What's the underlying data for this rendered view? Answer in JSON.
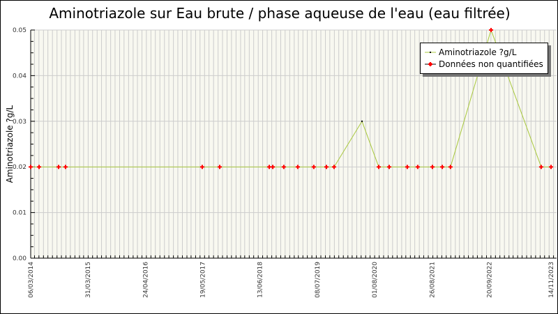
{
  "chart_data": {
    "type": "line",
    "title": "Aminotriazole sur Eau brute / phase aqueuse de l'eau (eau filtrée)",
    "xlabel": "",
    "ylabel": "Aminotriazole ?g/L",
    "xlim": [
      "2014-03-06",
      "2023-11-14"
    ],
    "ylim": [
      0,
      0.05
    ],
    "x_tick_labels": [
      "06/03/2014",
      "31/03/2015",
      "24/04/2016",
      "19/05/2017",
      "13/06/2018",
      "08/07/2019",
      "01/08/2020",
      "26/08/2021",
      "20/09/2022",
      "14/11/2023"
    ],
    "x_tick_dates": [
      "2014-03-06",
      "2015-03-31",
      "2016-04-24",
      "2017-05-19",
      "2018-06-13",
      "2019-07-08",
      "2020-08-01",
      "2021-08-26",
      "2022-09-20",
      "2023-11-14"
    ],
    "y_tick_labels": [
      "0.00",
      "0.01",
      "0.02",
      "0.03",
      "0.04",
      "0.05"
    ],
    "grid": true,
    "legend_position": "top-right",
    "colors": {
      "line": "#a8c83c",
      "quantified": "#000000",
      "non_quantified": "#ff0000",
      "plot_bg": "#f8f8f0",
      "grid": "#cccccc"
    },
    "series": [
      {
        "name": "Aminotriazole ?g/L",
        "points": [
          {
            "x": "2014-03-06",
            "y": 0.02,
            "q": false
          },
          {
            "x": "2014-05-02",
            "y": 0.02,
            "q": false
          },
          {
            "x": "2014-09-12",
            "y": 0.02,
            "q": false
          },
          {
            "x": "2014-10-29",
            "y": 0.02,
            "q": false
          },
          {
            "x": "2017-05-16",
            "y": 0.02,
            "q": false
          },
          {
            "x": "2017-09-12",
            "y": 0.02,
            "q": false
          },
          {
            "x": "2018-08-15",
            "y": 0.02,
            "q": false
          },
          {
            "x": "2018-09-08",
            "y": 0.02,
            "q": false
          },
          {
            "x": "2018-11-22",
            "y": 0.02,
            "q": false
          },
          {
            "x": "2019-02-25",
            "y": 0.02,
            "q": false
          },
          {
            "x": "2019-06-14",
            "y": 0.02,
            "q": false
          },
          {
            "x": "2019-09-08",
            "y": 0.02,
            "q": false
          },
          {
            "x": "2019-10-30",
            "y": 0.02,
            "q": false
          },
          {
            "x": "2020-05-07",
            "y": 0.03,
            "q": true
          },
          {
            "x": "2020-08-29",
            "y": 0.02,
            "q": false
          },
          {
            "x": "2020-11-08",
            "y": 0.02,
            "q": false
          },
          {
            "x": "2021-03-11",
            "y": 0.02,
            "q": false
          },
          {
            "x": "2021-05-21",
            "y": 0.02,
            "q": false
          },
          {
            "x": "2021-08-29",
            "y": 0.02,
            "q": false
          },
          {
            "x": "2021-11-04",
            "y": 0.02,
            "q": false
          },
          {
            "x": "2021-12-30",
            "y": 0.02,
            "q": false
          },
          {
            "x": "2022-10-02",
            "y": 0.05,
            "q": false
          },
          {
            "x": "2023-09-08",
            "y": 0.02,
            "q": false
          },
          {
            "x": "2023-11-14",
            "y": 0.02,
            "q": false
          }
        ]
      }
    ],
    "legend": [
      {
        "label": "Aminotriazole ?g/L",
        "marker": "black-dot"
      },
      {
        "label": "Données non quantifiées",
        "marker": "red-cross"
      }
    ]
  }
}
